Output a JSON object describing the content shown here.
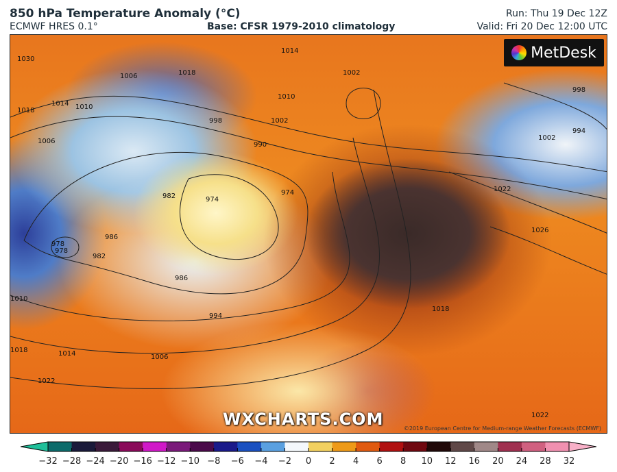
{
  "header": {
    "title": "850 hPa Temperature Anomaly (°C)",
    "model": "ECMWF HRES 0.1°",
    "base": "Base: CFSR 1979-2010 climatology",
    "run": "Run: Thu 19 Dec 12Z",
    "valid": "Valid: Fri 20 Dec 12:00 UTC"
  },
  "map": {
    "logo": "MetDesk",
    "watermark": "WXCHARTS.COM",
    "copyright": "©2019 European Centre for Medium-range Weather Forecasts (ECMWF)",
    "isobar_labels": [
      "1030",
      "1014",
      "1018",
      "1010",
      "1006",
      "1006",
      "1018",
      "1014",
      "1010",
      "998",
      "1002",
      "990",
      "1002",
      "998",
      "994",
      "990",
      "1002",
      "1022",
      "1026",
      "974",
      "974",
      "978",
      "982",
      "986",
      "978",
      "982",
      "986",
      "994",
      "1010",
      "1018",
      "1014",
      "1006",
      "1022",
      "1018",
      "1022"
    ]
  },
  "colorbar": {
    "ticks": [
      "−32",
      "−28",
      "−24",
      "−20",
      "−16",
      "−12",
      "−10",
      "−8",
      "−6",
      "−4",
      "−2",
      "0",
      "2",
      "4",
      "6",
      "8",
      "10",
      "12",
      "16",
      "20",
      "24",
      "28",
      "32"
    ],
    "colors": [
      "#1fbf9a",
      "#0c6a6a",
      "#1a1a3a",
      "#3a1a3a",
      "#8a0a5a",
      "#d018c8",
      "#7a1a7a",
      "#4a0a4a",
      "#1a1a8a",
      "#1a50c0",
      "#5aa0e0",
      "#f4f8fc",
      "#f2d060",
      "#ee9a18",
      "#e05a10",
      "#b01010",
      "#700810",
      "#200808",
      "#604848",
      "#a08888",
      "#a03050",
      "#d06080",
      "#f090b0",
      "#f8b0c8"
    ]
  }
}
